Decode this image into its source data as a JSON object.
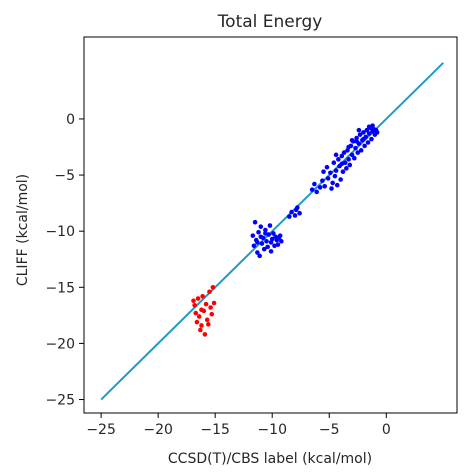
{
  "chart_data": {
    "type": "scatter",
    "title": "Total Energy",
    "xlabel": "CCSD(T)/CBS label (kcal/mol)",
    "ylabel": "CLIFF (kcal/mol)",
    "xlim": [
      -26.5,
      6.2
    ],
    "ylim": [
      -26.2,
      7.3
    ],
    "xticks": [
      -25,
      -20,
      -15,
      -10,
      -5,
      0
    ],
    "yticks": [
      -25,
      -20,
      -15,
      -10,
      -5,
      0
    ],
    "grid": false,
    "legend": "none",
    "reference_line": {
      "x": [
        -25,
        5
      ],
      "y": [
        -25,
        5
      ],
      "color": "#1f9ac9"
    },
    "series": [
      {
        "color": "#ff0000",
        "points": [
          [
            -16.9,
            -16.2
          ],
          [
            -16.8,
            -16.6
          ],
          [
            -16.7,
            -17.3
          ],
          [
            -16.6,
            -18.1
          ],
          [
            -16.5,
            -16.0
          ],
          [
            -16.4,
            -17.6
          ],
          [
            -16.3,
            -18.8
          ],
          [
            -16.2,
            -18.4
          ],
          [
            -16.1,
            -15.8
          ],
          [
            -16.0,
            -17.1
          ],
          [
            -15.9,
            -19.2
          ],
          [
            -15.8,
            -16.5
          ],
          [
            -15.7,
            -17.9
          ],
          [
            -15.6,
            -18.3
          ],
          [
            -15.5,
            -15.4
          ],
          [
            -15.4,
            -16.8
          ],
          [
            -15.3,
            -17.4
          ],
          [
            -15.2,
            -15.0
          ],
          [
            -15.1,
            -16.4
          ],
          [
            -16.2,
            -17.0
          ]
        ]
      },
      {
        "color": "#0000ff",
        "points": [
          [
            -11.7,
            -10.4
          ],
          [
            -11.6,
            -11.3
          ],
          [
            -11.5,
            -9.2
          ],
          [
            -11.4,
            -10.8
          ],
          [
            -11.3,
            -11.9
          ],
          [
            -11.2,
            -10.1
          ],
          [
            -11.1,
            -12.2
          ],
          [
            -11.0,
            -9.6
          ],
          [
            -10.9,
            -11.1
          ],
          [
            -10.8,
            -10.6
          ],
          [
            -10.7,
            -11.6
          ],
          [
            -10.6,
            -9.9
          ],
          [
            -10.5,
            -10.9
          ],
          [
            -10.4,
            -11.4
          ],
          [
            -10.3,
            -10.3
          ],
          [
            -10.2,
            -9.5
          ],
          [
            -10.1,
            -11.0
          ],
          [
            -10.0,
            -10.7
          ],
          [
            -9.9,
            -10.2
          ],
          [
            -9.8,
            -11.3
          ],
          [
            -9.7,
            -10.5
          ],
          [
            -9.6,
            -10.8
          ],
          [
            -9.5,
            -11.2
          ],
          [
            -9.4,
            -10.6
          ],
          [
            -9.3,
            -10.4
          ],
          [
            -9.2,
            -10.9
          ],
          [
            -11.0,
            -10.5
          ],
          [
            -10.6,
            -10.2
          ],
          [
            -11.3,
            -11.0
          ],
          [
            -10.1,
            -11.8
          ],
          [
            -8.5,
            -8.7
          ],
          [
            -8.3,
            -8.3
          ],
          [
            -8.0,
            -8.6
          ],
          [
            -7.9,
            -8.1
          ],
          [
            -7.6,
            -8.4
          ],
          [
            -7.8,
            -7.9
          ],
          [
            -6.5,
            -6.3
          ],
          [
            -6.3,
            -5.8
          ],
          [
            -6.1,
            -6.5
          ],
          [
            -5.8,
            -6.1
          ],
          [
            -5.6,
            -5.5
          ],
          [
            -5.4,
            -6.0
          ],
          [
            -5.2,
            -4.3
          ],
          [
            -5.1,
            -5.3
          ],
          [
            -4.9,
            -4.8
          ],
          [
            -4.8,
            -6.2
          ],
          [
            -4.7,
            -5.7
          ],
          [
            -4.6,
            -3.9
          ],
          [
            -4.5,
            -5.1
          ],
          [
            -4.4,
            -4.6
          ],
          [
            -4.3,
            -5.9
          ],
          [
            -4.2,
            -3.6
          ],
          [
            -4.1,
            -4.2
          ],
          [
            -4.0,
            -5.4
          ],
          [
            -3.9,
            -3.3
          ],
          [
            -3.8,
            -4.7
          ],
          [
            -3.7,
            -3.0
          ],
          [
            -3.6,
            -3.9
          ],
          [
            -3.5,
            -4.4
          ],
          [
            -3.4,
            -2.8
          ],
          [
            -3.3,
            -3.6
          ],
          [
            -3.2,
            -4.1
          ],
          [
            -3.1,
            -2.4
          ],
          [
            -3.0,
            -3.2
          ],
          [
            -2.9,
            -2.0
          ],
          [
            -2.8,
            -3.5
          ],
          [
            -2.7,
            -2.6
          ],
          [
            -2.6,
            -1.7
          ],
          [
            -2.5,
            -3.0
          ],
          [
            -2.4,
            -2.2
          ],
          [
            -2.3,
            -1.4
          ],
          [
            -2.2,
            -2.8
          ],
          [
            -2.1,
            -1.9
          ],
          [
            -2.0,
            -1.2
          ],
          [
            -1.9,
            -2.4
          ],
          [
            -1.8,
            -1.6
          ],
          [
            -1.7,
            -1.0
          ],
          [
            -1.6,
            -2.1
          ],
          [
            -1.5,
            -1.3
          ],
          [
            -1.4,
            -0.8
          ],
          [
            -1.3,
            -1.8
          ],
          [
            -1.2,
            -1.1
          ],
          [
            -1.1,
            -0.9
          ],
          [
            -1.0,
            -1.4
          ],
          [
            -0.9,
            -1.0
          ],
          [
            -0.8,
            -1.2
          ],
          [
            -2.6,
            -2.0
          ],
          [
            -3.3,
            -2.5
          ],
          [
            -2.0,
            -1.8
          ],
          [
            -1.5,
            -0.7
          ],
          [
            -3.9,
            -4.0
          ],
          [
            -4.4,
            -3.2
          ],
          [
            -1.2,
            -0.6
          ],
          [
            -2.4,
            -1.0
          ],
          [
            -3.0,
            -1.9
          ],
          [
            -5.5,
            -4.7
          ]
        ]
      }
    ]
  }
}
